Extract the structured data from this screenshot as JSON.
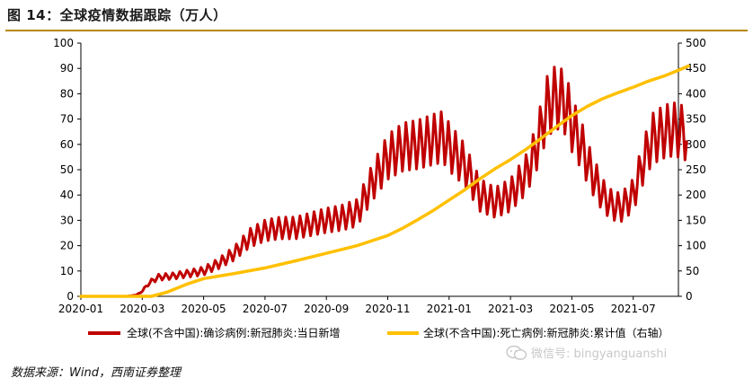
{
  "title": "图 14：全球疫情数据跟踪（万人）",
  "source": "数据来源：Wind，西南证券整理",
  "watermark": "微信号: bingyanguanshi",
  "colors": {
    "daily": "#c00000",
    "cumulative": "#ffc000",
    "rule": "#b8860b"
  },
  "chart_data": {
    "type": "line",
    "x_tick_labels": [
      "2020-01",
      "2020-03",
      "2020-05",
      "2020-07",
      "2020-09",
      "2020-11",
      "2021-01",
      "2021-03",
      "2021-05",
      "2021-07"
    ],
    "x_range_months": [
      0,
      19.8
    ],
    "left_axis": {
      "ticks": [
        0,
        10,
        20,
        30,
        40,
        50,
        60,
        70,
        80,
        90,
        100
      ],
      "ylim": [
        0,
        100
      ]
    },
    "right_axis": {
      "ticks": [
        0,
        50,
        100,
        150,
        200,
        250,
        300,
        350,
        400,
        450,
        500
      ],
      "ylim": [
        0,
        500
      ]
    },
    "series": [
      {
        "name": "全球(不含中国):确诊病例:新冠肺炎:当日新增",
        "axis": "left",
        "color": "#c00000",
        "weekly_oscillation": true,
        "points": [
          [
            0,
            0
          ],
          [
            1.5,
            0
          ],
          [
            1.8,
            0.5
          ],
          [
            2.0,
            2
          ],
          [
            2.2,
            5
          ],
          [
            2.5,
            7.5
          ],
          [
            3.0,
            8
          ],
          [
            3.5,
            9
          ],
          [
            4.0,
            10
          ],
          [
            4.5,
            13
          ],
          [
            5.0,
            17
          ],
          [
            5.5,
            23
          ],
          [
            6.0,
            26
          ],
          [
            6.5,
            27
          ],
          [
            7.0,
            27
          ],
          [
            7.5,
            28.5
          ],
          [
            8.0,
            30
          ],
          [
            8.5,
            31
          ],
          [
            9.0,
            33
          ],
          [
            9.5,
            45
          ],
          [
            10.0,
            55
          ],
          [
            10.5,
            59
          ],
          [
            11.0,
            60
          ],
          [
            11.5,
            62
          ],
          [
            11.8,
            63
          ],
          [
            12.0,
            59
          ],
          [
            12.5,
            52
          ],
          [
            12.8,
            45
          ],
          [
            13.0,
            40
          ],
          [
            13.5,
            37
          ],
          [
            14.0,
            40
          ],
          [
            14.5,
            48
          ],
          [
            14.8,
            57
          ],
          [
            15.0,
            66
          ],
          [
            15.2,
            75
          ],
          [
            15.5,
            79
          ],
          [
            15.8,
            76
          ],
          [
            16.0,
            68
          ],
          [
            16.3,
            60
          ],
          [
            16.6,
            50
          ],
          [
            17.0,
            40
          ],
          [
            17.3,
            36
          ],
          [
            17.6,
            35
          ],
          [
            18.0,
            40
          ],
          [
            18.3,
            52
          ],
          [
            18.6,
            62
          ],
          [
            19.0,
            65
          ],
          [
            19.3,
            66
          ],
          [
            19.6,
            65
          ],
          [
            19.8,
            63
          ]
        ]
      },
      {
        "name": "全球(不含中国):死亡病例:新冠肺炎:累计值（右轴）",
        "axis": "right",
        "color": "#ffc000",
        "points": [
          [
            0,
            0
          ],
          [
            2.3,
            0
          ],
          [
            2.8,
            8
          ],
          [
            3.5,
            25
          ],
          [
            4.0,
            35
          ],
          [
            5.0,
            45
          ],
          [
            6.0,
            56
          ],
          [
            7.0,
            70
          ],
          [
            8.0,
            85
          ],
          [
            9.0,
            100
          ],
          [
            10.0,
            120
          ],
          [
            10.5,
            135
          ],
          [
            11.0,
            152
          ],
          [
            11.5,
            170
          ],
          [
            12.0,
            190
          ],
          [
            12.5,
            210
          ],
          [
            13.0,
            232
          ],
          [
            13.5,
            252
          ],
          [
            14.0,
            270
          ],
          [
            14.5,
            290
          ],
          [
            15.0,
            312
          ],
          [
            15.5,
            335
          ],
          [
            16.0,
            357
          ],
          [
            16.5,
            375
          ],
          [
            17.0,
            390
          ],
          [
            17.5,
            402
          ],
          [
            18.0,
            413
          ],
          [
            18.5,
            425
          ],
          [
            19.0,
            435
          ],
          [
            19.5,
            447
          ],
          [
            19.8,
            455
          ]
        ]
      }
    ],
    "legend_position": "bottom"
  }
}
